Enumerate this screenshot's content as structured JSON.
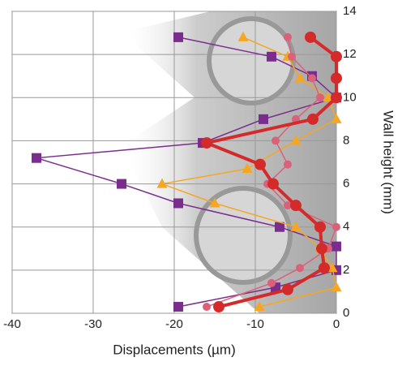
{
  "chart_data": {
    "type": "line",
    "x_label": "Displacements (µm)",
    "y_label": "Wall height (mm)",
    "xlim": [
      -40,
      0
    ],
    "xticks": [
      -40,
      -30,
      -20,
      -10,
      0
    ],
    "ylim": [
      0,
      14
    ],
    "yticks": [
      0,
      2,
      4,
      6,
      8,
      10,
      12,
      14
    ],
    "grid": true,
    "series": [
      {
        "color": "#7b2d8e",
        "marker": "square",
        "line_width": 1.5,
        "x": [
          -19.5,
          -8,
          -3,
          0,
          -9,
          -16.5,
          -37,
          -26.5,
          -19.5,
          -7,
          0,
          0,
          -7.5,
          -19.5
        ],
        "values": [
          12.8,
          11.9,
          11,
          10,
          9,
          7.9,
          7.2,
          6,
          5.1,
          4,
          3.1,
          2,
          1.2,
          0.3
        ]
      },
      {
        "color": "#f5a623",
        "marker": "triangle",
        "line_width": 1.5,
        "x": [
          -11.5,
          -6,
          -4.5,
          -1,
          0,
          -5,
          -11,
          -21.5,
          -15,
          -5,
          -2,
          -0.5,
          0,
          -9.5
        ],
        "values": [
          12.8,
          11.9,
          10.9,
          10,
          9,
          8,
          6.7,
          6,
          5.1,
          4,
          3,
          2.1,
          1.2,
          0.3
        ]
      },
      {
        "color": "#d9627a",
        "marker": "circle",
        "line_width": 1.5,
        "x": [
          -6,
          -5.5,
          -3,
          -2,
          -5,
          -7.5,
          -6,
          -8.5,
          -6,
          0,
          -1,
          -4.5,
          -8,
          -16
        ],
        "values": [
          12.8,
          11.9,
          10.9,
          10,
          9,
          8,
          6.9,
          6,
          5,
          4,
          3,
          2.1,
          1.4,
          0.3
        ]
      },
      {
        "color": "#d42a2a",
        "marker": "circle",
        "line_width": 4,
        "x": [
          -3.2,
          0,
          0,
          0,
          -2.9,
          -16,
          -9.4,
          -7.8,
          -5,
          -2,
          -1.8,
          -1.5,
          -6,
          -14.5
        ],
        "values": [
          12.8,
          11.9,
          10.9,
          10,
          9,
          7.9,
          6.9,
          6,
          5,
          4,
          3,
          2.1,
          1.1,
          0.3
        ]
      }
    ]
  }
}
